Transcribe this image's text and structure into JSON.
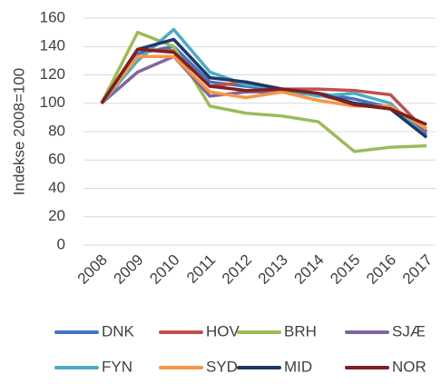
{
  "chart_data": {
    "type": "line",
    "y_label": "Indekse 2008=100",
    "categories": [
      "2008",
      "2009",
      "2010",
      "2011",
      "2012",
      "2013",
      "2014",
      "2015",
      "2016",
      "2017"
    ],
    "series": [
      {
        "name": "DNK",
        "color": "#4472c4",
        "values": [
          100,
          135,
          140,
          115,
          112,
          110,
          107,
          103,
          97,
          78
        ]
      },
      {
        "name": "HOV",
        "color": "#c0504d",
        "values": [
          100,
          138,
          137,
          112,
          115,
          110,
          110,
          109,
          106,
          80
        ]
      },
      {
        "name": "BRH",
        "color": "#9bbb59",
        "values": [
          100,
          150,
          140,
          98,
          93,
          91,
          87,
          66,
          69,
          70
        ]
      },
      {
        "name": "SJÆ",
        "color": "#8064a2",
        "values": [
          100,
          122,
          133,
          105,
          108,
          108,
          106,
          100,
          97,
          80
        ]
      },
      {
        "name": "FYN",
        "color": "#4bacc6",
        "values": [
          100,
          130,
          152,
          122,
          113,
          110,
          105,
          107,
          100,
          76
        ]
      },
      {
        "name": "SYD",
        "color": "#f79646",
        "values": [
          100,
          133,
          133,
          108,
          104,
          108,
          102,
          98,
          98,
          82
        ]
      },
      {
        "name": "MID",
        "color": "#1f3864",
        "values": [
          100,
          138,
          145,
          118,
          115,
          110,
          107,
          100,
          96,
          76
        ]
      },
      {
        "name": "NOR",
        "color": "#7f1f1f",
        "values": [
          100,
          138,
          136,
          112,
          109,
          110,
          107,
          99,
          96,
          85
        ]
      }
    ],
    "ylim": [
      0,
      160
    ],
    "yticks": [
      0,
      20,
      40,
      60,
      80,
      100,
      120,
      140,
      160
    ],
    "grid": true
  }
}
